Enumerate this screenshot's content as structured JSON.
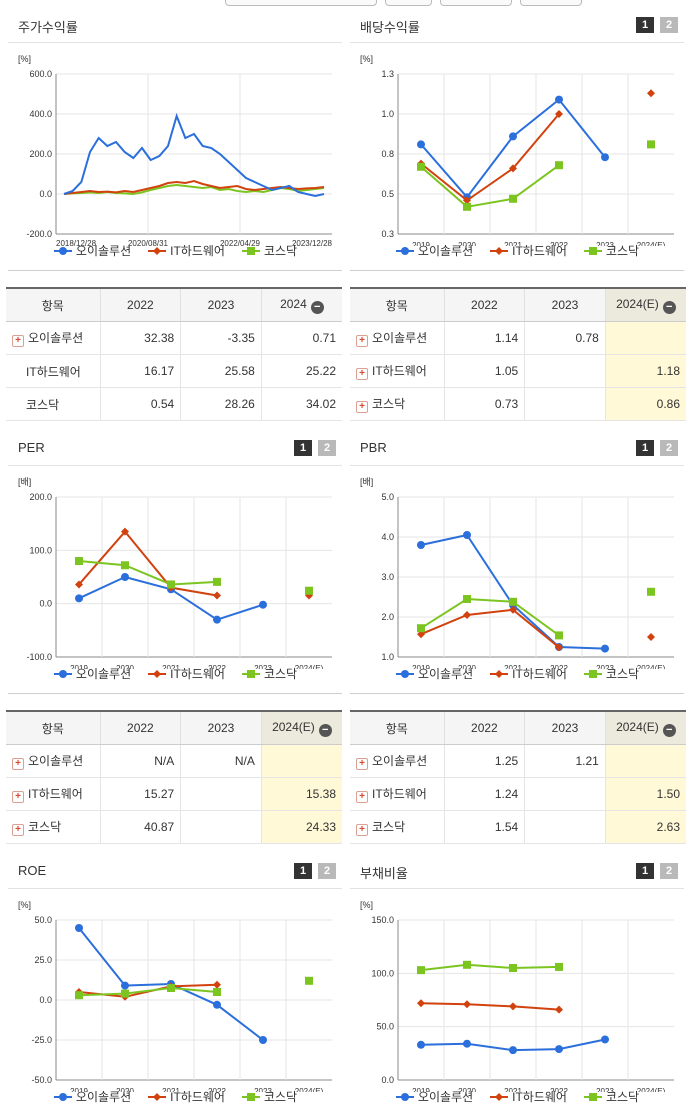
{
  "colors": {
    "company": "#2a6fdb",
    "industry": "#d1420f",
    "kosdaq": "#7cc520"
  },
  "legend": {
    "company": "오이솔루션",
    "industry": "IT하드웨어",
    "kosdaq": "코스닥"
  },
  "pager": {
    "one": "1",
    "two": "2"
  },
  "plus": "+",
  "minus": "−",
  "panels": {
    "stock": {
      "title": "주가수익률"
    },
    "dividend": {
      "title": "배당수익률"
    },
    "per": {
      "title": "PER"
    },
    "pbr": {
      "title": "PBR"
    },
    "roe": {
      "title": "ROE"
    },
    "debt": {
      "title": "부채비율"
    }
  },
  "tables": {
    "stock": {
      "headers": [
        "항목",
        "2022",
        "2023",
        "2024"
      ],
      "rows": [
        {
          "label": "오이솔루션",
          "plus": true,
          "v": [
            "32.38",
            "-3.35",
            "0.71"
          ]
        },
        {
          "label": "IT하드웨어",
          "plus": false,
          "v": [
            "16.17",
            "25.58",
            "25.22"
          ]
        },
        {
          "label": "코스닥",
          "plus": false,
          "v": [
            "0.54",
            "28.26",
            "34.02"
          ]
        }
      ]
    },
    "dividend": {
      "headers": [
        "항목",
        "2022",
        "2023",
        "2024(E)"
      ],
      "rows": [
        {
          "label": "오이솔루션",
          "plus": true,
          "v": [
            "1.14",
            "0.78",
            ""
          ]
        },
        {
          "label": "IT하드웨어",
          "plus": true,
          "v": [
            "1.05",
            "",
            "1.18"
          ]
        },
        {
          "label": "코스닥",
          "plus": true,
          "v": [
            "0.73",
            "",
            "0.86"
          ]
        }
      ]
    },
    "per": {
      "headers": [
        "항목",
        "2022",
        "2023",
        "2024(E)"
      ],
      "rows": [
        {
          "label": "오이솔루션",
          "plus": true,
          "v": [
            "N/A",
            "N/A",
            ""
          ]
        },
        {
          "label": "IT하드웨어",
          "plus": true,
          "v": [
            "15.27",
            "",
            "15.38"
          ]
        },
        {
          "label": "코스닥",
          "plus": true,
          "v": [
            "40.87",
            "",
            "24.33"
          ]
        }
      ]
    },
    "pbr": {
      "headers": [
        "항목",
        "2022",
        "2023",
        "2024(E)"
      ],
      "rows": [
        {
          "label": "오이솔루션",
          "plus": true,
          "v": [
            "1.25",
            "1.21",
            ""
          ]
        },
        {
          "label": "IT하드웨어",
          "plus": true,
          "v": [
            "1.24",
            "",
            "1.50"
          ]
        },
        {
          "label": "코스닥",
          "plus": true,
          "v": [
            "1.54",
            "",
            "2.63"
          ]
        }
      ]
    }
  },
  "chart_data": [
    {
      "id": "stock",
      "type": "line",
      "title": "주가수익률",
      "ylabel": "[%]",
      "ylim": [
        -200,
        600
      ],
      "yticks": [
        "600.0",
        "400.0",
        "200.0",
        "0.0",
        "-200.0"
      ],
      "xticks": [
        "2018/12/28",
        "2020/08/31",
        "2022/04/29",
        "2023/12/28"
      ],
      "grid": true,
      "legend_position": "bottom",
      "series": [
        {
          "name": "오이솔루션",
          "key": "company",
          "values": [
            0,
            15,
            60,
            210,
            280,
            240,
            260,
            210,
            180,
            230,
            170,
            190,
            240,
            390,
            280,
            300,
            240,
            230,
            200,
            160,
            120,
            80,
            60,
            40,
            20,
            30,
            40,
            10,
            0,
            -10,
            0
          ]
        },
        {
          "name": "IT하드웨어",
          "key": "industry",
          "values": [
            0,
            5,
            10,
            15,
            10,
            12,
            8,
            15,
            10,
            20,
            30,
            40,
            55,
            60,
            55,
            65,
            50,
            40,
            30,
            35,
            40,
            25,
            20,
            25,
            30,
            35,
            30,
            25,
            28,
            30,
            35
          ]
        },
        {
          "name": "코스닥",
          "key": "kosdaq",
          "values": [
            0,
            3,
            5,
            8,
            5,
            10,
            5,
            3,
            0,
            8,
            20,
            30,
            40,
            45,
            40,
            35,
            30,
            35,
            20,
            25,
            15,
            10,
            15,
            10,
            20,
            30,
            25,
            15,
            20,
            25,
            30
          ]
        }
      ]
    },
    {
      "id": "dividend",
      "type": "line",
      "title": "배당수익률",
      "ylabel": "[%]",
      "ylim": [
        0.3,
        1.3
      ],
      "yticks": [
        "1.3",
        "1.0",
        "0.8",
        "0.5",
        "0.3"
      ],
      "categories": [
        "2019",
        "2020",
        "2021",
        "2022",
        "2023",
        "2024(E)"
      ],
      "grid": true,
      "legend_position": "bottom",
      "series": [
        {
          "name": "오이솔루션",
          "key": "company",
          "values": [
            0.86,
            0.53,
            0.91,
            1.14,
            0.78,
            null
          ]
        },
        {
          "name": "IT하드웨어",
          "key": "industry",
          "values": [
            0.74,
            0.51,
            0.71,
            1.05,
            null,
            1.18
          ]
        },
        {
          "name": "코스닥",
          "key": "kosdaq",
          "values": [
            0.72,
            0.47,
            0.52,
            0.73,
            null,
            0.86
          ]
        }
      ]
    },
    {
      "id": "per",
      "type": "line",
      "title": "PER",
      "ylabel": "[배]",
      "ylim": [
        -100,
        200
      ],
      "yticks": [
        "200.0",
        "100.0",
        "0.0",
        "-100.0"
      ],
      "categories": [
        "2019",
        "2020",
        "2021",
        "2022",
        "2023",
        "2024(E)"
      ],
      "grid": true,
      "legend_position": "bottom",
      "series": [
        {
          "name": "오이솔루션",
          "key": "company",
          "values": [
            10,
            50,
            27,
            -30,
            -2,
            null
          ]
        },
        {
          "name": "IT하드웨어",
          "key": "industry",
          "values": [
            36,
            135,
            30,
            15.27,
            null,
            15.38
          ]
        },
        {
          "name": "코스닥",
          "key": "kosdaq",
          "values": [
            80,
            72,
            36,
            40.87,
            null,
            24.33
          ]
        }
      ]
    },
    {
      "id": "pbr",
      "type": "line",
      "title": "PBR",
      "ylabel": "[배]",
      "ylim": [
        1,
        5
      ],
      "yticks": [
        "5.0",
        "4.0",
        "3.0",
        "2.0",
        "1.0"
      ],
      "categories": [
        "2019",
        "2020",
        "2021",
        "2022",
        "2023",
        "2024(E)"
      ],
      "grid": true,
      "legend_position": "bottom",
      "series": [
        {
          "name": "오이솔루션",
          "key": "company",
          "values": [
            3.8,
            4.05,
            2.3,
            1.25,
            1.21,
            null
          ]
        },
        {
          "name": "IT하드웨어",
          "key": "industry",
          "values": [
            1.57,
            2.05,
            2.18,
            1.24,
            null,
            1.5
          ]
        },
        {
          "name": "코스닥",
          "key": "kosdaq",
          "values": [
            1.72,
            2.45,
            2.38,
            1.54,
            null,
            2.63
          ]
        }
      ]
    },
    {
      "id": "roe",
      "type": "line",
      "title": "ROE",
      "ylabel": "[%]",
      "ylim": [
        -50,
        50
      ],
      "yticks": [
        "50.0",
        "25.0",
        "0.0",
        "-25.0",
        "-50.0"
      ],
      "categories": [
        "2019",
        "2020",
        "2021",
        "2022",
        "2023",
        "2024(E)"
      ],
      "grid": true,
      "legend_position": "bottom",
      "series": [
        {
          "name": "오이솔루션",
          "key": "company",
          "values": [
            45,
            9,
            10,
            -3,
            -25,
            null
          ]
        },
        {
          "name": "IT하드웨어",
          "key": "industry",
          "values": [
            5,
            2,
            8.5,
            9.5,
            null,
            null
          ]
        },
        {
          "name": "코스닥",
          "key": "kosdaq",
          "values": [
            3,
            4,
            7.5,
            5,
            null,
            12
          ]
        }
      ]
    },
    {
      "id": "debt",
      "type": "line",
      "title": "부채비율",
      "ylabel": "[%]",
      "ylim": [
        0,
        150
      ],
      "yticks": [
        "150.0",
        "100.0",
        "50.0",
        "0.0"
      ],
      "categories": [
        "2019",
        "2020",
        "2021",
        "2022",
        "2023",
        "2024(E)"
      ],
      "grid": true,
      "legend_position": "bottom",
      "series": [
        {
          "name": "오이솔루션",
          "key": "company",
          "values": [
            33,
            34,
            28,
            29,
            38,
            null
          ]
        },
        {
          "name": "IT하드웨어",
          "key": "industry",
          "values": [
            72,
            71,
            69,
            66,
            null,
            null
          ]
        },
        {
          "name": "코스닥",
          "key": "kosdaq",
          "values": [
            103,
            108,
            105,
            106,
            null,
            null
          ]
        }
      ]
    }
  ]
}
